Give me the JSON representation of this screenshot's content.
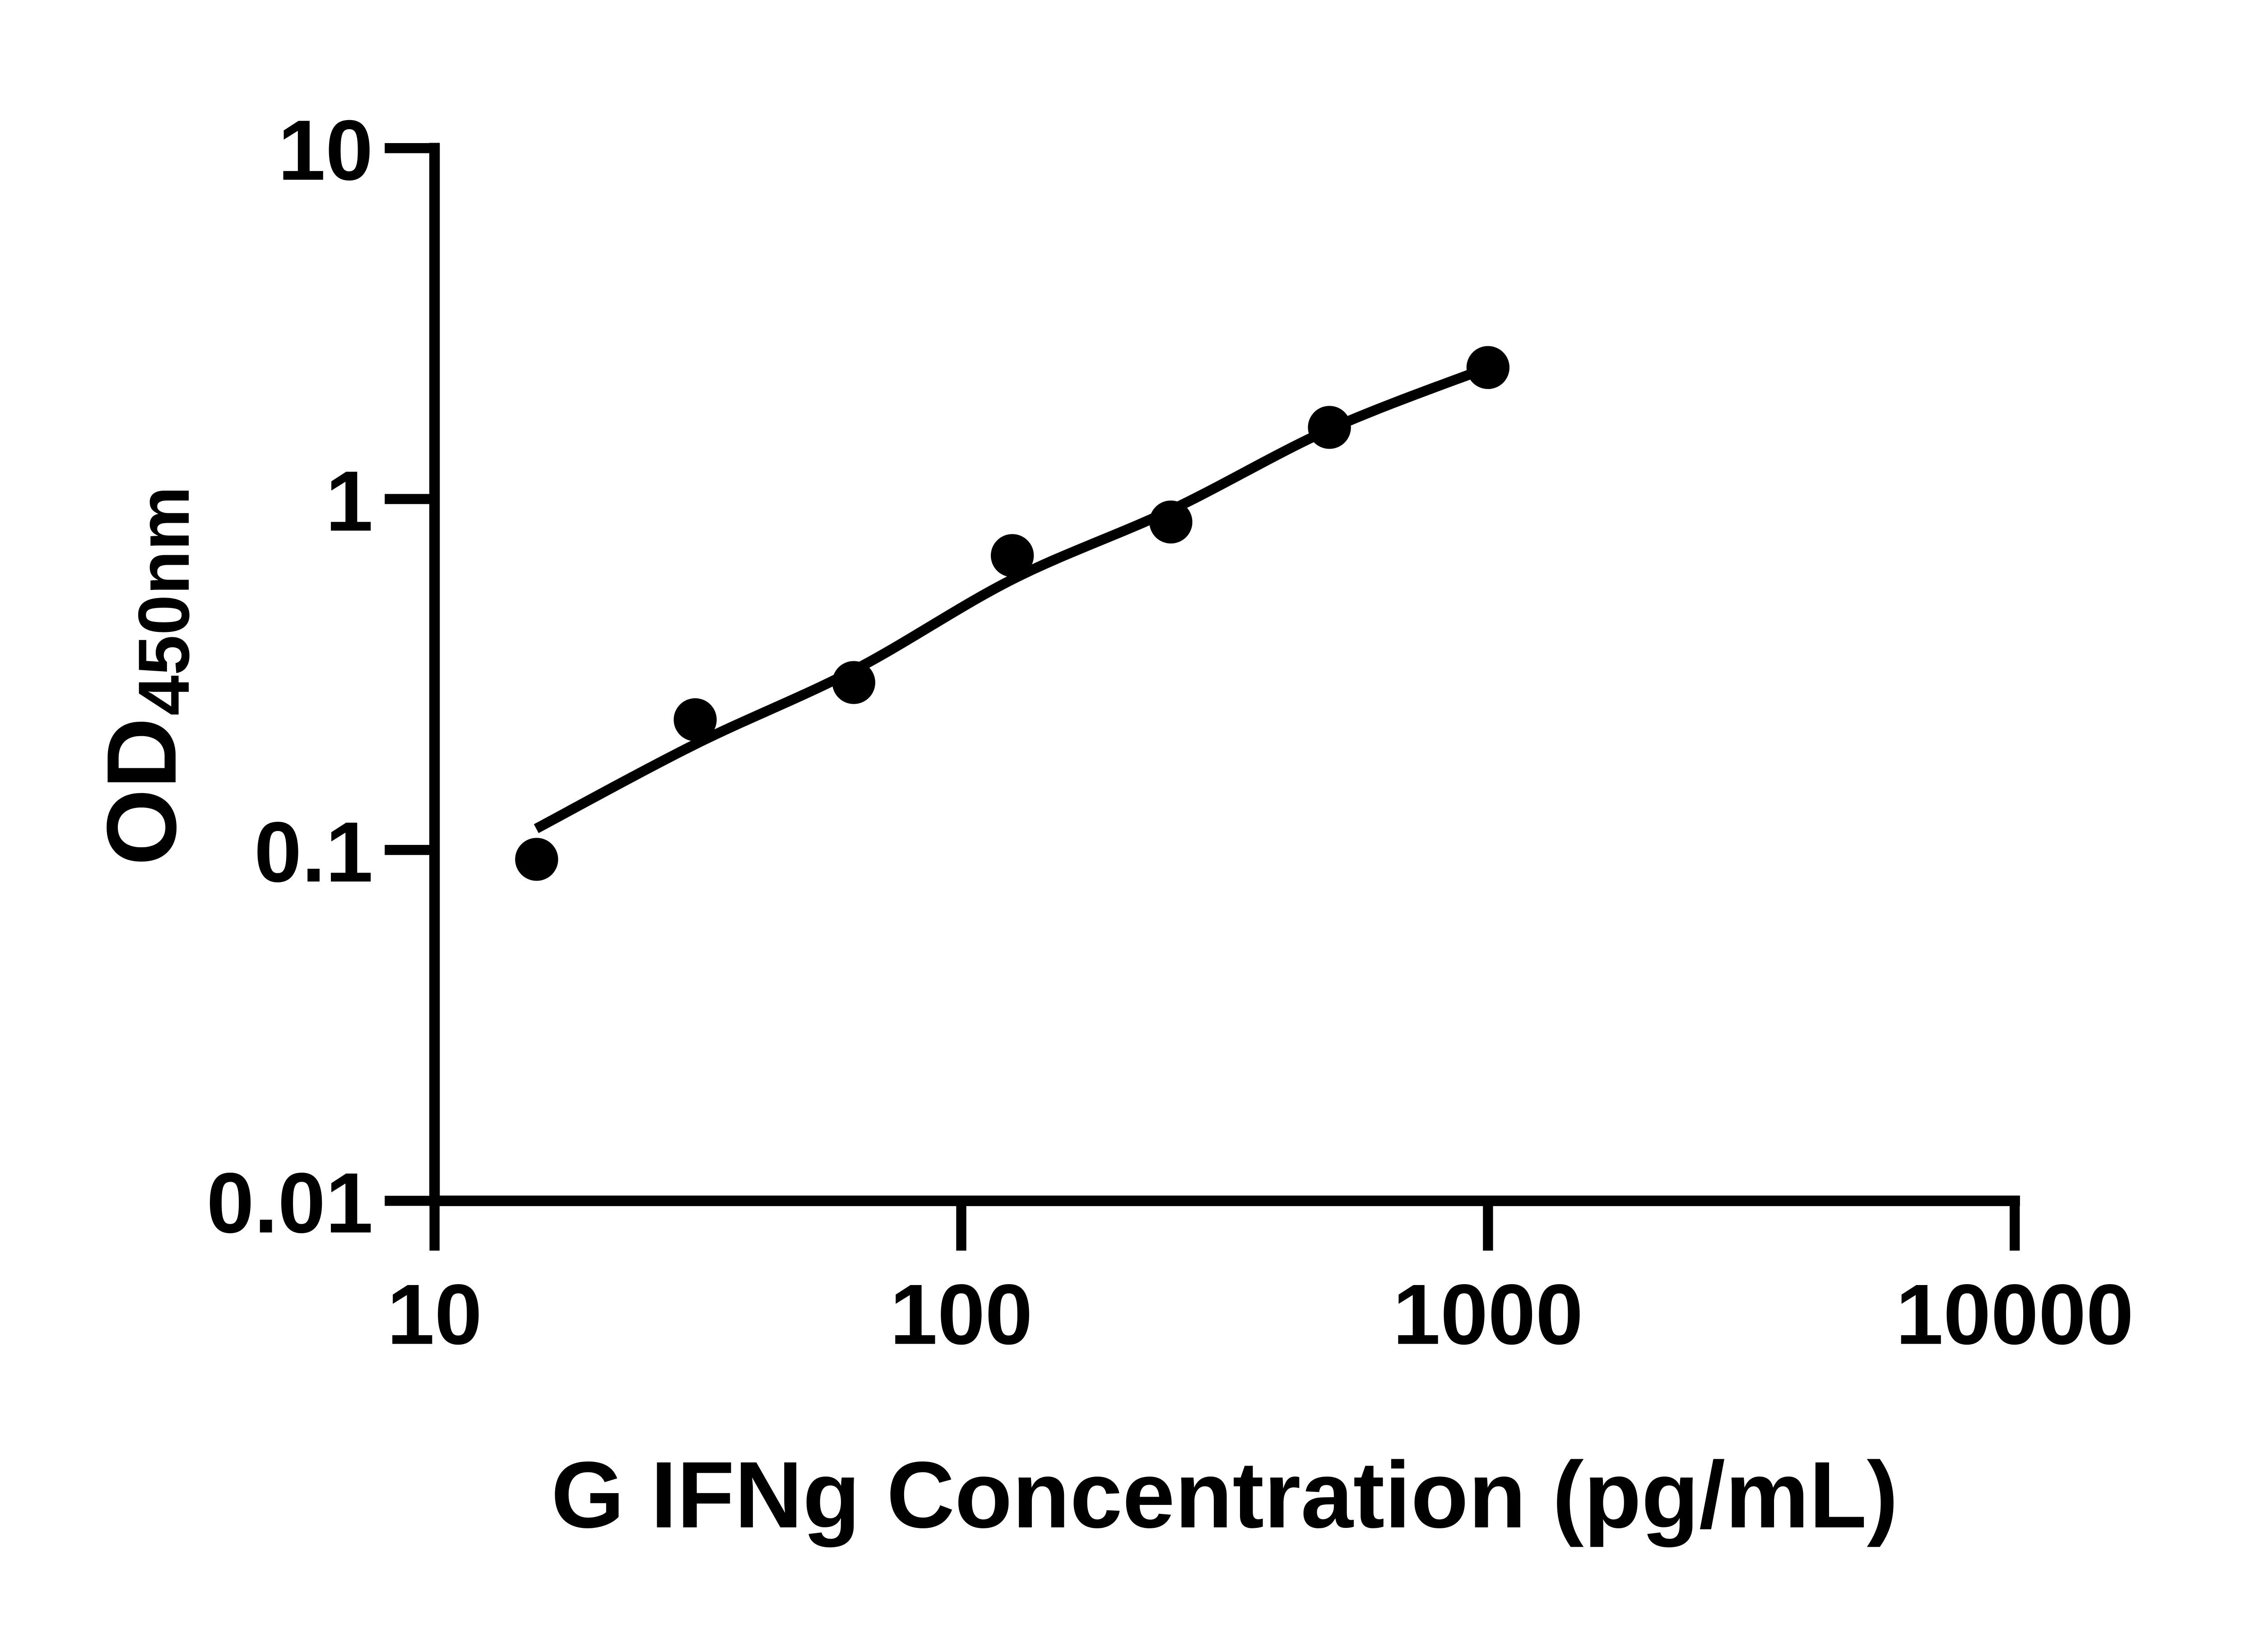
{
  "colors": {
    "ink": "#000000",
    "background": "#ffffff"
  },
  "chart_data": {
    "type": "scatter",
    "title": "",
    "xlabel": "G IFNg Concentration (pg/mL)",
    "ylabel": "OD450nm",
    "ylabel_parts": {
      "main": "OD",
      "sub": "450nm"
    },
    "x_axis": {
      "scale": "log10",
      "min": 10,
      "max": 10000,
      "ticks": [
        10,
        100,
        1000,
        10000
      ],
      "tick_labels": [
        "10",
        "100",
        "1000",
        "10000"
      ]
    },
    "y_axis": {
      "scale": "log10",
      "min": 0.01,
      "max": 10,
      "ticks": [
        0.01,
        0.1,
        1,
        10
      ],
      "tick_labels": [
        "0.01",
        "0.1",
        "1",
        "10"
      ]
    },
    "grid": false,
    "legend": false,
    "series": [
      {
        "name": "standard-points",
        "type": "scatter",
        "marker": "filled-circle",
        "color": "#000000",
        "points": [
          [
            15.625,
            0.094
          ],
          [
            31.25,
            0.235
          ],
          [
            62.5,
            0.3
          ],
          [
            125,
            0.69
          ],
          [
            250,
            0.86
          ],
          [
            500,
            1.6
          ],
          [
            1000,
            2.37
          ]
        ]
      },
      {
        "name": "fit-curve",
        "type": "line",
        "color": "#000000",
        "points": [
          [
            15.6,
            0.115
          ],
          [
            31.25,
            0.2
          ],
          [
            62.5,
            0.325
          ],
          [
            125,
            0.59
          ],
          [
            250,
            0.93
          ],
          [
            500,
            1.58
          ],
          [
            1000,
            2.37
          ]
        ]
      }
    ]
  }
}
